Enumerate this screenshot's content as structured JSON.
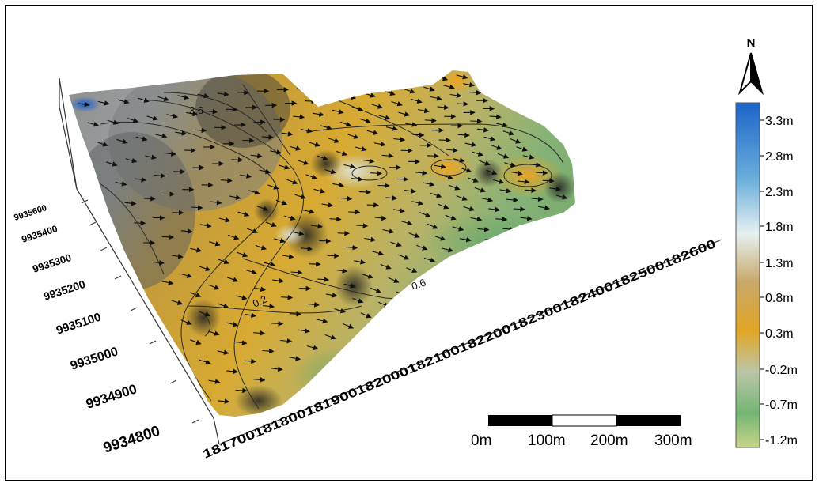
{
  "map": {
    "north_label": "N",
    "contour_labels": [
      "3.6",
      "0.2",
      "0.6"
    ],
    "y_ticks": [
      "9935600",
      "9935400",
      "9935300",
      "9935200",
      "9935100",
      "9935000",
      "9934900",
      "9934800"
    ],
    "x_ticks": [
      "181700",
      "181800",
      "181900",
      "182000",
      "182100",
      "182200",
      "182300",
      "182400",
      "182500",
      "182600"
    ],
    "x_tick_string": "181700181800181900182000182100182200182300182400182500182600"
  },
  "legend": {
    "labels": [
      "3.3m",
      "2.8m",
      "2.3m",
      "1.8m",
      "1.3m",
      "0.8m",
      "0.3m",
      "-0.2m",
      "-0.7m",
      "-1.2m"
    ],
    "gradient_colors": [
      "#1c64c8",
      "#6aaedc",
      "#e6f0f0",
      "#c9a86a",
      "#e2a526",
      "#bcc6a8",
      "#74b574",
      "#c8d488"
    ]
  },
  "scale_bar": {
    "labels": [
      "0m",
      "100m",
      "200m",
      "300m"
    ]
  }
}
